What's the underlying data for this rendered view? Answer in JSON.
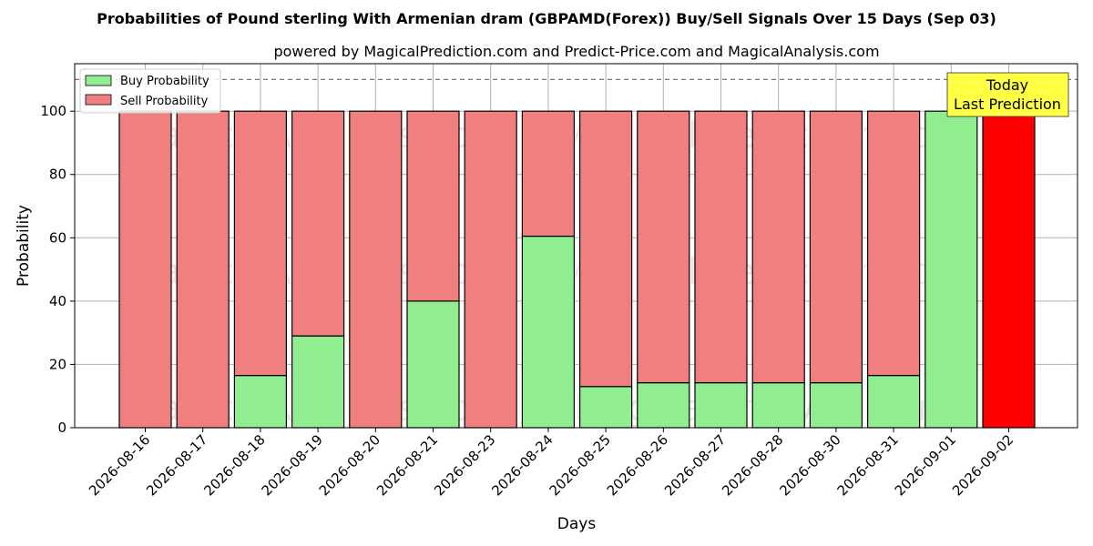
{
  "chart_data": {
    "type": "bar",
    "stacked": true,
    "title": "Probabilities of Pound sterling With Armenian dram (GBPAMD(Forex)) Buy/Sell Signals Over 15 Days (Sep 03)",
    "subtitle": "powered by MagicalPrediction.com and Predict-Price.com and MagicalAnalysis.com",
    "xlabel": "Days",
    "ylabel": "Probability",
    "ylim": [
      0,
      115
    ],
    "yticks": [
      0,
      20,
      40,
      60,
      80,
      100
    ],
    "reference_line": 110,
    "grid": true,
    "legend_position": "top-left",
    "categories": [
      "2026-08-16",
      "2026-08-17",
      "2026-08-18",
      "2026-08-19",
      "2026-08-20",
      "2026-08-21",
      "2026-08-23",
      "2026-08-24",
      "2026-08-25",
      "2026-08-26",
      "2026-08-27",
      "2026-08-28",
      "2026-08-30",
      "2026-08-31",
      "2026-09-01",
      "2026-09-02"
    ],
    "series": [
      {
        "name": "Buy Probability",
        "color": "#90ee90",
        "values": [
          0,
          0,
          16.5,
          29,
          0,
          40,
          0,
          60.5,
          13,
          14.2,
          14.2,
          14.2,
          14.2,
          16.5,
          100,
          0
        ]
      },
      {
        "name": "Sell Probability",
        "color": "#f08080",
        "values": [
          100,
          100,
          83.5,
          71,
          100,
          60,
          100,
          39.5,
          87,
          85.8,
          85.8,
          85.8,
          85.8,
          83.5,
          0,
          100
        ]
      }
    ],
    "highlight": {
      "index": 15,
      "color": "#ff0000"
    },
    "annotation": {
      "lines": [
        "Today",
        "Last Prediction"
      ],
      "color": "#ffff44"
    },
    "watermarks": [
      "MagicalAnalysis.com",
      "MagicalPrediction.com"
    ]
  }
}
